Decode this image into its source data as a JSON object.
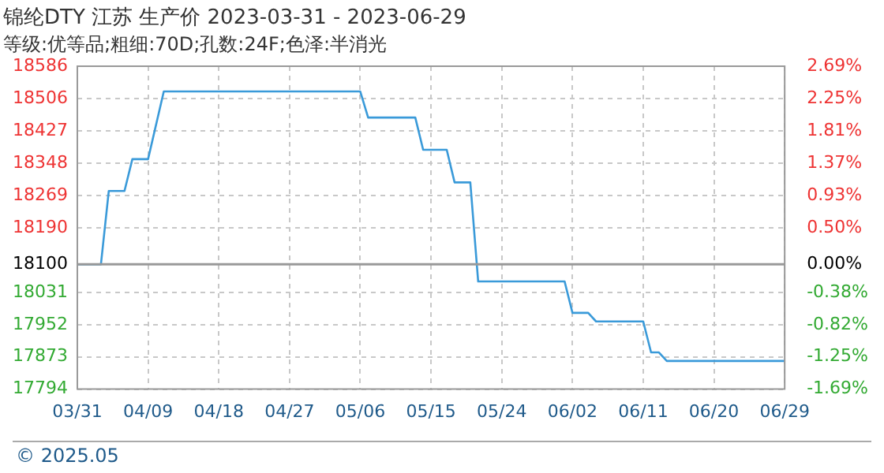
{
  "chart_data": {
    "type": "line",
    "title": "锦纶DTY 江苏 生产价 2023-03-31 - 2023-06-29",
    "subtitle": "等级:优等品;粗细:70D;孔数:24F;色泽:半消光",
    "x": [
      "2023-03-31",
      "2023-04-03",
      "2023-04-04",
      "2023-04-06",
      "2023-04-07",
      "2023-04-09",
      "2023-04-11",
      "2023-05-06",
      "2023-05-07",
      "2023-05-13",
      "2023-05-14",
      "2023-05-17",
      "2023-05-18",
      "2023-05-20",
      "2023-05-21",
      "2023-06-01",
      "2023-06-02",
      "2023-06-04",
      "2023-06-05",
      "2023-06-11",
      "2023-06-12",
      "2023-06-13",
      "2023-06-14",
      "2023-06-29"
    ],
    "series": [
      {
        "color": "#3a9ad9",
        "values": [
          18100,
          18100,
          18280,
          18280,
          18358,
          18358,
          18524,
          18524,
          18460,
          18460,
          18381,
          18381,
          18301,
          18301,
          18058,
          18058,
          17981,
          17981,
          17960,
          17960,
          17884,
          17884,
          17863,
          17863
        ]
      }
    ],
    "xlim": [
      "2023-03-31",
      "2023-06-29"
    ],
    "xticks": [
      {
        "value": "2023-03-31",
        "label": "03/31"
      },
      {
        "value": "2023-04-09",
        "label": "04/09"
      },
      {
        "value": "2023-04-18",
        "label": "04/18"
      },
      {
        "value": "2023-04-27",
        "label": "04/27"
      },
      {
        "value": "2023-05-06",
        "label": "05/06"
      },
      {
        "value": "2023-05-15",
        "label": "05/15"
      },
      {
        "value": "2023-05-24",
        "label": "05/24"
      },
      {
        "value": "2023-06-02",
        "label": "06/02"
      },
      {
        "value": "2023-06-11",
        "label": "06/11"
      },
      {
        "value": "2023-06-20",
        "label": "06/20"
      },
      {
        "value": "2023-06-29",
        "label": "06/29"
      }
    ],
    "ylim": [
      17794,
      18586
    ],
    "yticks": [
      17794,
      17873,
      17952,
      18031,
      18100,
      18190,
      18269,
      18348,
      18427,
      18506,
      18586
    ],
    "y2lim": [
      -1.69,
      2.69
    ],
    "y2ticks": [
      {
        "value": -1.69,
        "label": "-1.69%"
      },
      {
        "value": -1.25,
        "label": "-1.25%"
      },
      {
        "value": -0.82,
        "label": "-0.82%"
      },
      {
        "value": -0.38,
        "label": "-0.38%"
      },
      {
        "value": 0,
        "label": "0.00%"
      },
      {
        "value": 0.5,
        "label": "0.50%"
      },
      {
        "value": 0.93,
        "label": "0.93%"
      },
      {
        "value": 1.37,
        "label": "1.37%"
      },
      {
        "value": 1.81,
        "label": "1.81%"
      },
      {
        "value": 2.25,
        "label": "2.25%"
      },
      {
        "value": 2.69,
        "label": "2.69%"
      }
    ],
    "ref_lines": [
      {
        "axis": "y",
        "value": 18100,
        "color": "#999999"
      }
    ],
    "grid": true,
    "legend": false,
    "marker": "none",
    "line_style": "solid",
    "annotations": [
      "© 2025.05"
    ]
  }
}
